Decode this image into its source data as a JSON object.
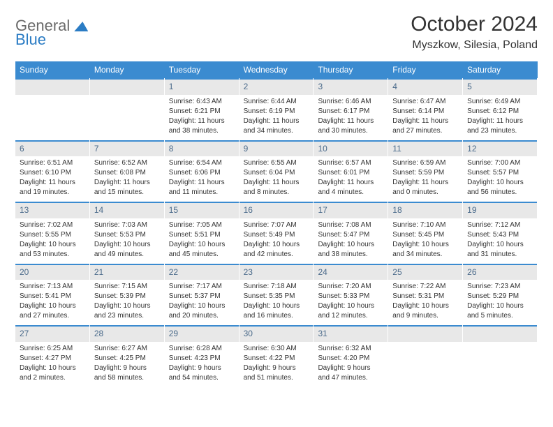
{
  "branding": {
    "logo_text_1": "General",
    "logo_text_2": "Blue",
    "logo_color": "#2b7cc4"
  },
  "header": {
    "month_title": "October 2024",
    "location": "Myszkow, Silesia, Poland"
  },
  "day_names": [
    "Sunday",
    "Monday",
    "Tuesday",
    "Wednesday",
    "Thursday",
    "Friday",
    "Saturday"
  ],
  "colors": {
    "header_bg": "#3b8bd0",
    "daynum_bg": "#e8e8e8",
    "border_top": "#3b8bd0",
    "text": "#333333"
  },
  "weeks": [
    [
      {
        "day": "",
        "sunrise": "",
        "sunset": "",
        "daylight1": "",
        "daylight2": ""
      },
      {
        "day": "",
        "sunrise": "",
        "sunset": "",
        "daylight1": "",
        "daylight2": ""
      },
      {
        "day": "1",
        "sunrise": "Sunrise: 6:43 AM",
        "sunset": "Sunset: 6:21 PM",
        "daylight1": "Daylight: 11 hours",
        "daylight2": "and 38 minutes."
      },
      {
        "day": "2",
        "sunrise": "Sunrise: 6:44 AM",
        "sunset": "Sunset: 6:19 PM",
        "daylight1": "Daylight: 11 hours",
        "daylight2": "and 34 minutes."
      },
      {
        "day": "3",
        "sunrise": "Sunrise: 6:46 AM",
        "sunset": "Sunset: 6:17 PM",
        "daylight1": "Daylight: 11 hours",
        "daylight2": "and 30 minutes."
      },
      {
        "day": "4",
        "sunrise": "Sunrise: 6:47 AM",
        "sunset": "Sunset: 6:14 PM",
        "daylight1": "Daylight: 11 hours",
        "daylight2": "and 27 minutes."
      },
      {
        "day": "5",
        "sunrise": "Sunrise: 6:49 AM",
        "sunset": "Sunset: 6:12 PM",
        "daylight1": "Daylight: 11 hours",
        "daylight2": "and 23 minutes."
      }
    ],
    [
      {
        "day": "6",
        "sunrise": "Sunrise: 6:51 AM",
        "sunset": "Sunset: 6:10 PM",
        "daylight1": "Daylight: 11 hours",
        "daylight2": "and 19 minutes."
      },
      {
        "day": "7",
        "sunrise": "Sunrise: 6:52 AM",
        "sunset": "Sunset: 6:08 PM",
        "daylight1": "Daylight: 11 hours",
        "daylight2": "and 15 minutes."
      },
      {
        "day": "8",
        "sunrise": "Sunrise: 6:54 AM",
        "sunset": "Sunset: 6:06 PM",
        "daylight1": "Daylight: 11 hours",
        "daylight2": "and 11 minutes."
      },
      {
        "day": "9",
        "sunrise": "Sunrise: 6:55 AM",
        "sunset": "Sunset: 6:04 PM",
        "daylight1": "Daylight: 11 hours",
        "daylight2": "and 8 minutes."
      },
      {
        "day": "10",
        "sunrise": "Sunrise: 6:57 AM",
        "sunset": "Sunset: 6:01 PM",
        "daylight1": "Daylight: 11 hours",
        "daylight2": "and 4 minutes."
      },
      {
        "day": "11",
        "sunrise": "Sunrise: 6:59 AM",
        "sunset": "Sunset: 5:59 PM",
        "daylight1": "Daylight: 11 hours",
        "daylight2": "and 0 minutes."
      },
      {
        "day": "12",
        "sunrise": "Sunrise: 7:00 AM",
        "sunset": "Sunset: 5:57 PM",
        "daylight1": "Daylight: 10 hours",
        "daylight2": "and 56 minutes."
      }
    ],
    [
      {
        "day": "13",
        "sunrise": "Sunrise: 7:02 AM",
        "sunset": "Sunset: 5:55 PM",
        "daylight1": "Daylight: 10 hours",
        "daylight2": "and 53 minutes."
      },
      {
        "day": "14",
        "sunrise": "Sunrise: 7:03 AM",
        "sunset": "Sunset: 5:53 PM",
        "daylight1": "Daylight: 10 hours",
        "daylight2": "and 49 minutes."
      },
      {
        "day": "15",
        "sunrise": "Sunrise: 7:05 AM",
        "sunset": "Sunset: 5:51 PM",
        "daylight1": "Daylight: 10 hours",
        "daylight2": "and 45 minutes."
      },
      {
        "day": "16",
        "sunrise": "Sunrise: 7:07 AM",
        "sunset": "Sunset: 5:49 PM",
        "daylight1": "Daylight: 10 hours",
        "daylight2": "and 42 minutes."
      },
      {
        "day": "17",
        "sunrise": "Sunrise: 7:08 AM",
        "sunset": "Sunset: 5:47 PM",
        "daylight1": "Daylight: 10 hours",
        "daylight2": "and 38 minutes."
      },
      {
        "day": "18",
        "sunrise": "Sunrise: 7:10 AM",
        "sunset": "Sunset: 5:45 PM",
        "daylight1": "Daylight: 10 hours",
        "daylight2": "and 34 minutes."
      },
      {
        "day": "19",
        "sunrise": "Sunrise: 7:12 AM",
        "sunset": "Sunset: 5:43 PM",
        "daylight1": "Daylight: 10 hours",
        "daylight2": "and 31 minutes."
      }
    ],
    [
      {
        "day": "20",
        "sunrise": "Sunrise: 7:13 AM",
        "sunset": "Sunset: 5:41 PM",
        "daylight1": "Daylight: 10 hours",
        "daylight2": "and 27 minutes."
      },
      {
        "day": "21",
        "sunrise": "Sunrise: 7:15 AM",
        "sunset": "Sunset: 5:39 PM",
        "daylight1": "Daylight: 10 hours",
        "daylight2": "and 23 minutes."
      },
      {
        "day": "22",
        "sunrise": "Sunrise: 7:17 AM",
        "sunset": "Sunset: 5:37 PM",
        "daylight1": "Daylight: 10 hours",
        "daylight2": "and 20 minutes."
      },
      {
        "day": "23",
        "sunrise": "Sunrise: 7:18 AM",
        "sunset": "Sunset: 5:35 PM",
        "daylight1": "Daylight: 10 hours",
        "daylight2": "and 16 minutes."
      },
      {
        "day": "24",
        "sunrise": "Sunrise: 7:20 AM",
        "sunset": "Sunset: 5:33 PM",
        "daylight1": "Daylight: 10 hours",
        "daylight2": "and 12 minutes."
      },
      {
        "day": "25",
        "sunrise": "Sunrise: 7:22 AM",
        "sunset": "Sunset: 5:31 PM",
        "daylight1": "Daylight: 10 hours",
        "daylight2": "and 9 minutes."
      },
      {
        "day": "26",
        "sunrise": "Sunrise: 7:23 AM",
        "sunset": "Sunset: 5:29 PM",
        "daylight1": "Daylight: 10 hours",
        "daylight2": "and 5 minutes."
      }
    ],
    [
      {
        "day": "27",
        "sunrise": "Sunrise: 6:25 AM",
        "sunset": "Sunset: 4:27 PM",
        "daylight1": "Daylight: 10 hours",
        "daylight2": "and 2 minutes."
      },
      {
        "day": "28",
        "sunrise": "Sunrise: 6:27 AM",
        "sunset": "Sunset: 4:25 PM",
        "daylight1": "Daylight: 9 hours",
        "daylight2": "and 58 minutes."
      },
      {
        "day": "29",
        "sunrise": "Sunrise: 6:28 AM",
        "sunset": "Sunset: 4:23 PM",
        "daylight1": "Daylight: 9 hours",
        "daylight2": "and 54 minutes."
      },
      {
        "day": "30",
        "sunrise": "Sunrise: 6:30 AM",
        "sunset": "Sunset: 4:22 PM",
        "daylight1": "Daylight: 9 hours",
        "daylight2": "and 51 minutes."
      },
      {
        "day": "31",
        "sunrise": "Sunrise: 6:32 AM",
        "sunset": "Sunset: 4:20 PM",
        "daylight1": "Daylight: 9 hours",
        "daylight2": "and 47 minutes."
      },
      {
        "day": "",
        "sunrise": "",
        "sunset": "",
        "daylight1": "",
        "daylight2": ""
      },
      {
        "day": "",
        "sunrise": "",
        "sunset": "",
        "daylight1": "",
        "daylight2": ""
      }
    ]
  ]
}
